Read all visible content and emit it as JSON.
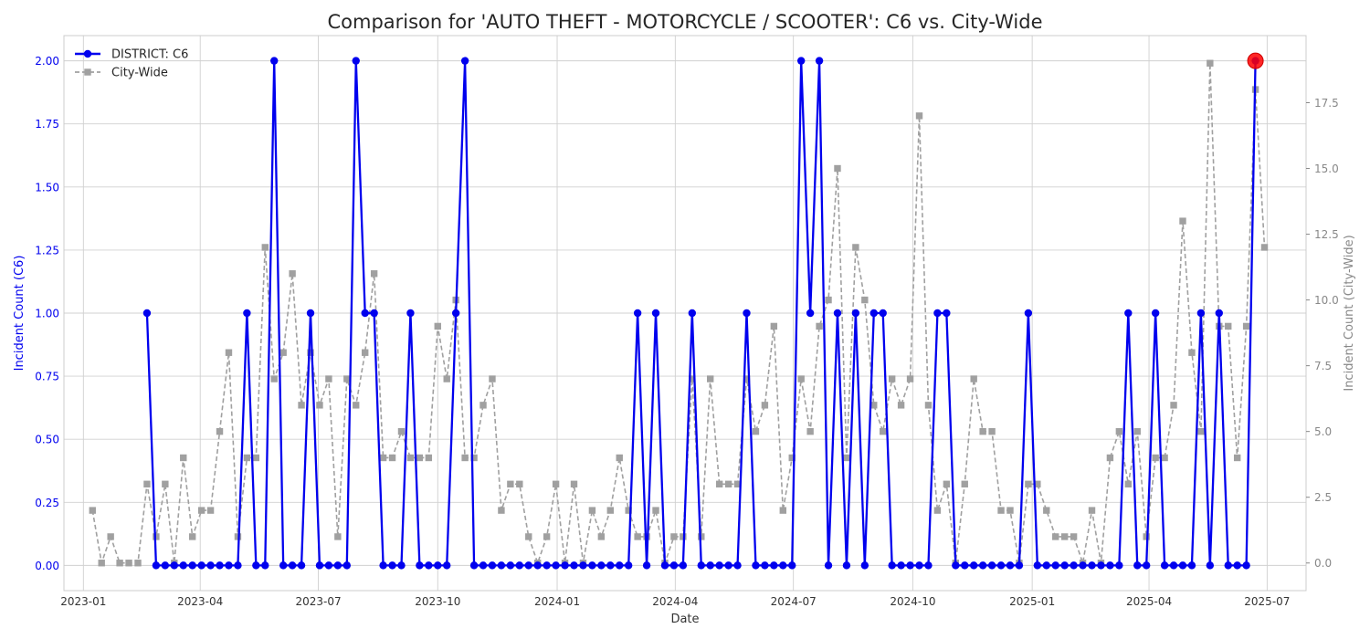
{
  "chart_data": {
    "type": "line",
    "title": "Comparison for 'AUTO THEFT - MOTORCYCLE / SCOOTER': C6 vs. City-Wide",
    "xlabel": "Date",
    "ylabel_left": "Incident Count (C6)",
    "ylabel_right": "Incident Count (City-Wide)",
    "ylim_left": [
      -0.1,
      2.1
    ],
    "ylim_right": [
      -1.05,
      20.05
    ],
    "xlim": [
      "2022-12-17",
      "2025-07-31"
    ],
    "grid": true,
    "legend_position": "top-left",
    "x_ticks": [
      "2023-01",
      "2023-04",
      "2023-07",
      "2023-10",
      "2024-01",
      "2024-04",
      "2024-07",
      "2024-10",
      "2025-01",
      "2025-04",
      "2025-07"
    ],
    "x_tick_dates": [
      "2023-01-01",
      "2023-04-01",
      "2023-07-01",
      "2023-10-01",
      "2024-01-01",
      "2024-04-01",
      "2024-07-01",
      "2024-10-01",
      "2025-01-01",
      "2025-04-01",
      "2025-07-01"
    ],
    "y_ticks_left": [
      "0.00",
      "0.25",
      "0.50",
      "0.75",
      "1.00",
      "1.25",
      "1.50",
      "1.75",
      "2.00"
    ],
    "y_tick_values_left": [
      0,
      0.25,
      0.5,
      0.75,
      1,
      1.25,
      1.5,
      1.75,
      2
    ],
    "y_ticks_right": [
      "0.0",
      "2.5",
      "5.0",
      "7.5",
      "10.0",
      "12.5",
      "15.0",
      "17.5"
    ],
    "y_tick_values_right": [
      0,
      2.5,
      5,
      7.5,
      10,
      12.5,
      15,
      17.5
    ],
    "series": [
      {
        "name": "DISTRICT: C6",
        "axis": "left",
        "color": "#0000ee",
        "marker": "circle",
        "style": "solid",
        "x": [
          "2023-02-19",
          "2023-02-26",
          "2023-03-05",
          "2023-03-12",
          "2023-03-19",
          "2023-03-26",
          "2023-04-02",
          "2023-04-09",
          "2023-04-16",
          "2023-04-23",
          "2023-04-30",
          "2023-05-07",
          "2023-05-14",
          "2023-05-21",
          "2023-05-28",
          "2023-06-04",
          "2023-06-11",
          "2023-06-18",
          "2023-06-25",
          "2023-07-02",
          "2023-07-09",
          "2023-07-16",
          "2023-07-23",
          "2023-07-30",
          "2023-08-06",
          "2023-08-13",
          "2023-08-20",
          "2023-08-27",
          "2023-09-03",
          "2023-09-10",
          "2023-09-17",
          "2023-09-24",
          "2023-10-01",
          "2023-10-08",
          "2023-10-15",
          "2023-10-22",
          "2023-10-29",
          "2023-11-05",
          "2023-11-12",
          "2023-11-19",
          "2023-11-26",
          "2023-12-03",
          "2023-12-10",
          "2023-12-17",
          "2023-12-24",
          "2023-12-31",
          "2024-01-07",
          "2024-01-14",
          "2024-01-21",
          "2024-01-28",
          "2024-02-04",
          "2024-02-11",
          "2024-02-18",
          "2024-02-25",
          "2024-03-03",
          "2024-03-10",
          "2024-03-17",
          "2024-03-24",
          "2024-03-31",
          "2024-04-07",
          "2024-04-14",
          "2024-04-21",
          "2024-04-28",
          "2024-05-05",
          "2024-05-12",
          "2024-05-19",
          "2024-05-26",
          "2024-06-02",
          "2024-06-09",
          "2024-06-16",
          "2024-06-23",
          "2024-06-30",
          "2024-07-07",
          "2024-07-14",
          "2024-07-21",
          "2024-07-28",
          "2024-08-04",
          "2024-08-11",
          "2024-08-18",
          "2024-08-25",
          "2024-09-01",
          "2024-09-08",
          "2024-09-15",
          "2024-09-22",
          "2024-09-29",
          "2024-10-06",
          "2024-10-13",
          "2024-10-20",
          "2024-10-27",
          "2024-11-03",
          "2024-11-10",
          "2024-11-17",
          "2024-11-24",
          "2024-12-01",
          "2024-12-08",
          "2024-12-15",
          "2024-12-22",
          "2024-12-29",
          "2025-01-05",
          "2025-01-12",
          "2025-01-19",
          "2025-01-26",
          "2025-02-02",
          "2025-02-09",
          "2025-02-16",
          "2025-02-23",
          "2025-03-02",
          "2025-03-09",
          "2025-03-16",
          "2025-03-23",
          "2025-03-30",
          "2025-04-06",
          "2025-04-13",
          "2025-04-20",
          "2025-04-27",
          "2025-05-04",
          "2025-05-11",
          "2025-05-18",
          "2025-05-25",
          "2025-06-01",
          "2025-06-08",
          "2025-06-15",
          "2025-06-22"
        ],
        "values": [
          1,
          0,
          0,
          0,
          0,
          0,
          0,
          0,
          0,
          0,
          0,
          1,
          0,
          0,
          2,
          0,
          0,
          0,
          1,
          0,
          0,
          0,
          0,
          2,
          1,
          1,
          0,
          0,
          0,
          1,
          0,
          0,
          0,
          0,
          1,
          2,
          0,
          0,
          0,
          0,
          0,
          0,
          0,
          0,
          0,
          0,
          0,
          0,
          0,
          0,
          0,
          0,
          0,
          0,
          1,
          0,
          1,
          0,
          0,
          0,
          1,
          0,
          0,
          0,
          0,
          0,
          1,
          0,
          0,
          0,
          0,
          0,
          2,
          1,
          2,
          0,
          1,
          0,
          1,
          0,
          1,
          1,
          0,
          0,
          0,
          0,
          0,
          1,
          1,
          0,
          0,
          0,
          0,
          0,
          0,
          0,
          0,
          1,
          0,
          0,
          0,
          0,
          0,
          0,
          0,
          0,
          0,
          0,
          1,
          0,
          0,
          1,
          0,
          0,
          0,
          0,
          1,
          0,
          1,
          0,
          0,
          0,
          2
        ]
      },
      {
        "name": "City-Wide",
        "axis": "right",
        "color": "#a0a0a0",
        "marker": "square",
        "style": "dashed",
        "x": [
          "2023-01-08",
          "2023-01-15",
          "2023-01-22",
          "2023-01-29",
          "2023-02-05",
          "2023-02-12",
          "2023-02-19",
          "2023-02-26",
          "2023-03-05",
          "2023-03-12",
          "2023-03-19",
          "2023-03-26",
          "2023-04-02",
          "2023-04-09",
          "2023-04-16",
          "2023-04-23",
          "2023-04-30",
          "2023-05-07",
          "2023-05-14",
          "2023-05-21",
          "2023-05-28",
          "2023-06-04",
          "2023-06-11",
          "2023-06-18",
          "2023-06-25",
          "2023-07-02",
          "2023-07-09",
          "2023-07-16",
          "2023-07-23",
          "2023-07-30",
          "2023-08-06",
          "2023-08-13",
          "2023-08-20",
          "2023-08-27",
          "2023-09-03",
          "2023-09-10",
          "2023-09-17",
          "2023-09-24",
          "2023-10-01",
          "2023-10-08",
          "2023-10-15",
          "2023-10-22",
          "2023-10-29",
          "2023-11-05",
          "2023-11-12",
          "2023-11-19",
          "2023-11-26",
          "2023-12-03",
          "2023-12-10",
          "2023-12-17",
          "2023-12-24",
          "2023-12-31",
          "2024-01-07",
          "2024-01-14",
          "2024-01-21",
          "2024-01-28",
          "2024-02-04",
          "2024-02-11",
          "2024-02-18",
          "2024-02-25",
          "2024-03-03",
          "2024-03-10",
          "2024-03-17",
          "2024-03-24",
          "2024-03-31",
          "2024-04-07",
          "2024-04-14",
          "2024-04-21",
          "2024-04-28",
          "2024-05-05",
          "2024-05-12",
          "2024-05-19",
          "2024-05-26",
          "2024-06-02",
          "2024-06-09",
          "2024-06-16",
          "2024-06-23",
          "2024-06-30",
          "2024-07-07",
          "2024-07-14",
          "2024-07-21",
          "2024-07-28",
          "2024-08-04",
          "2024-08-11",
          "2024-08-18",
          "2024-08-25",
          "2024-09-01",
          "2024-09-08",
          "2024-09-15",
          "2024-09-22",
          "2024-09-29",
          "2024-10-06",
          "2024-10-13",
          "2024-10-20",
          "2024-10-27",
          "2024-11-03",
          "2024-11-10",
          "2024-11-17",
          "2024-11-24",
          "2024-12-01",
          "2024-12-08",
          "2024-12-15",
          "2024-12-22",
          "2024-12-29",
          "2025-01-05",
          "2025-01-12",
          "2025-01-19",
          "2025-01-26",
          "2025-02-02",
          "2025-02-09",
          "2025-02-16",
          "2025-02-23",
          "2025-03-02",
          "2025-03-09",
          "2025-03-16",
          "2025-03-23",
          "2025-03-30",
          "2025-04-06",
          "2025-04-13",
          "2025-04-20",
          "2025-04-27",
          "2025-05-04",
          "2025-05-11",
          "2025-05-18",
          "2025-05-25",
          "2025-06-01",
          "2025-06-08",
          "2025-06-15",
          "2025-06-22",
          "2025-06-29"
        ],
        "values": [
          2,
          0,
          1,
          0,
          0,
          0,
          3,
          1,
          3,
          0,
          4,
          1,
          2,
          2,
          5,
          8,
          1,
          4,
          4,
          12,
          7,
          8,
          11,
          6,
          8,
          6,
          7,
          1,
          7,
          6,
          8,
          11,
          4,
          4,
          5,
          4,
          4,
          4,
          9,
          7,
          10,
          4,
          4,
          6,
          7,
          2,
          3,
          3,
          1,
          0,
          1,
          3,
          0,
          3,
          0,
          2,
          1,
          2,
          4,
          2,
          1,
          1,
          2,
          0,
          1,
          1,
          7,
          1,
          7,
          3,
          3,
          3,
          7,
          5,
          6,
          9,
          2,
          4,
          7,
          5,
          9,
          10,
          15,
          4,
          12,
          10,
          6,
          5,
          7,
          6,
          7,
          17,
          6,
          2,
          3,
          0,
          3,
          7,
          5,
          5,
          2,
          2,
          0,
          3,
          3,
          2,
          1,
          1,
          1,
          0,
          2,
          0,
          4,
          5,
          3,
          5,
          1,
          4,
          4,
          6,
          13,
          8,
          5,
          19,
          9,
          9,
          4,
          9,
          18,
          12
        ]
      }
    ],
    "highlight": {
      "x": "2025-06-22",
      "value": 2,
      "axis": "left",
      "color": "#ff0000"
    }
  }
}
